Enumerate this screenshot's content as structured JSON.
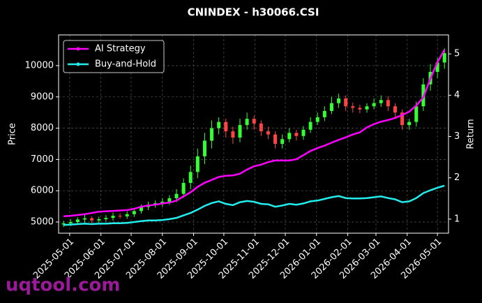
{
  "chart_data": {
    "type": "candlestick",
    "title": "CNINDEX - h30066.CSI",
    "ylabel": "Price",
    "y2label": "Return",
    "x": [
      "2025-04-25",
      "2025-05-02",
      "2025-05-09",
      "2025-05-16",
      "2025-05-23",
      "2025-05-30",
      "2025-06-06",
      "2025-06-13",
      "2025-06-20",
      "2025-06-27",
      "2025-07-04",
      "2025-07-11",
      "2025-07-18",
      "2025-07-25",
      "2025-08-01",
      "2025-08-08",
      "2025-08-15",
      "2025-08-22",
      "2025-08-29",
      "2025-09-05",
      "2025-09-12",
      "2025-09-19",
      "2025-09-26",
      "2025-10-03",
      "2025-10-10",
      "2025-10-17",
      "2025-10-24",
      "2025-10-31",
      "2025-11-07",
      "2025-11-14",
      "2025-11-21",
      "2025-11-28",
      "2025-12-05",
      "2025-12-12",
      "2025-12-19",
      "2025-12-26",
      "2026-01-02",
      "2026-01-09",
      "2026-01-16",
      "2026-01-23",
      "2026-01-30",
      "2026-02-06",
      "2026-02-13",
      "2026-02-20",
      "2026-02-27",
      "2026-03-06",
      "2026-03-13",
      "2026-03-20",
      "2026-03-27",
      "2026-04-03",
      "2026-04-10",
      "2026-04-17",
      "2026-04-24",
      "2026-05-01",
      "2026-05-08"
    ],
    "open": [
      4920,
      4960,
      5000,
      5080,
      5120,
      5050,
      5090,
      5130,
      5200,
      5180,
      5250,
      5350,
      5480,
      5550,
      5600,
      5650,
      5760,
      5900,
      6250,
      6600,
      7100,
      7600,
      8000,
      8200,
      7900,
      7700,
      8100,
      8300,
      8150,
      7900,
      7800,
      7500,
      7650,
      7850,
      7750,
      7950,
      8200,
      8350,
      8550,
      8800,
      8950,
      8700,
      8650,
      8600,
      8700,
      8800,
      8900,
      8700,
      8500,
      8100,
      8200,
      8700,
      9400,
      9800,
      10100
    ],
    "high": [
      5040,
      5090,
      5150,
      5230,
      5180,
      5170,
      5220,
      5300,
      5280,
      5340,
      5450,
      5560,
      5650,
      5690,
      5760,
      5860,
      6050,
      6400,
      6800,
      7350,
      7850,
      8250,
      8350,
      8300,
      8050,
      8300,
      8500,
      8400,
      8250,
      8050,
      7900,
      7800,
      8000,
      7950,
      8070,
      8350,
      8500,
      8700,
      9000,
      9100,
      9050,
      8820,
      8750,
      8800,
      8950,
      9050,
      9020,
      8800,
      8600,
      8300,
      8850,
      9600,
      10050,
      10250,
      10550
    ],
    "low": [
      4840,
      4870,
      4930,
      4980,
      4960,
      4980,
      5010,
      5040,
      5110,
      5100,
      5160,
      5270,
      5380,
      5460,
      5490,
      5550,
      5640,
      5770,
      6050,
      6400,
      6850,
      7350,
      7800,
      7700,
      7500,
      7550,
      7950,
      7950,
      7750,
      7650,
      7350,
      7350,
      7550,
      7600,
      7630,
      7850,
      8100,
      8230,
      8450,
      8650,
      8550,
      8500,
      8480,
      8500,
      8600,
      8680,
      8550,
      8350,
      7950,
      7950,
      8050,
      8550,
      9200,
      9600,
      9900
    ],
    "close": [
      4960,
      5000,
      5080,
      5120,
      5050,
      5090,
      5130,
      5200,
      5180,
      5250,
      5350,
      5480,
      5550,
      5600,
      5650,
      5760,
      5900,
      6250,
      6600,
      7100,
      7600,
      8000,
      8200,
      7900,
      7700,
      8100,
      8300,
      8150,
      7900,
      7800,
      7500,
      7650,
      7850,
      7750,
      7950,
      8200,
      8350,
      8550,
      8800,
      8950,
      8700,
      8650,
      8600,
      8700,
      8800,
      8900,
      8700,
      8500,
      8100,
      8200,
      8700,
      9400,
      9800,
      10100,
      10400
    ],
    "up_color": "#33ff33",
    "down_color": "#ff4444",
    "series": [
      {
        "name": "AI Strategy",
        "color": "#ff00ff",
        "axis": "y2",
        "values": [
          1.07,
          1.08,
          1.1,
          1.12,
          1.15,
          1.18,
          1.19,
          1.2,
          1.21,
          1.22,
          1.25,
          1.3,
          1.33,
          1.35,
          1.38,
          1.4,
          1.45,
          1.55,
          1.65,
          1.78,
          1.88,
          1.95,
          2.02,
          2.05,
          2.06,
          2.1,
          2.2,
          2.28,
          2.32,
          2.38,
          2.42,
          2.42,
          2.42,
          2.45,
          2.55,
          2.65,
          2.72,
          2.78,
          2.85,
          2.92,
          2.98,
          3.05,
          3.1,
          3.22,
          3.3,
          3.36,
          3.4,
          3.45,
          3.52,
          3.6,
          3.75,
          3.95,
          4.4,
          4.8,
          5.1
        ]
      },
      {
        "name": "Buy-and-Hold",
        "color": "#22eeee",
        "axis": "y2",
        "values": [
          0.86,
          0.87,
          0.88,
          0.89,
          0.88,
          0.89,
          0.89,
          0.9,
          0.9,
          0.91,
          0.93,
          0.95,
          0.97,
          0.97,
          0.98,
          1.0,
          1.03,
          1.09,
          1.15,
          1.23,
          1.32,
          1.39,
          1.43,
          1.37,
          1.34,
          1.41,
          1.44,
          1.42,
          1.37,
          1.36,
          1.3,
          1.33,
          1.37,
          1.35,
          1.38,
          1.43,
          1.45,
          1.49,
          1.53,
          1.56,
          1.51,
          1.5,
          1.5,
          1.51,
          1.53,
          1.55,
          1.51,
          1.48,
          1.41,
          1.43,
          1.51,
          1.63,
          1.7,
          1.76,
          1.81
        ]
      }
    ],
    "xlim": [
      "2025-04-20",
      "2026-05-12"
    ],
    "xticks": [
      "2025-05-01",
      "2025-06-01",
      "2025-07-01",
      "2025-08-01",
      "2025-09-01",
      "2025-10-01",
      "2025-11-01",
      "2025-12-01",
      "2026-01-01",
      "2026-02-01",
      "2026-03-01",
      "2026-04-01",
      "2026-05-01"
    ],
    "ylim": [
      4643,
      10982
    ],
    "yticks": [
      5000,
      6000,
      7000,
      8000,
      9000,
      10000
    ],
    "y2lim": [
      0.66,
      5.46
    ],
    "y2ticks": [
      1,
      2,
      3,
      4,
      5
    ],
    "grid": true,
    "legend": "upper left",
    "watermark": "uqtool.com"
  }
}
